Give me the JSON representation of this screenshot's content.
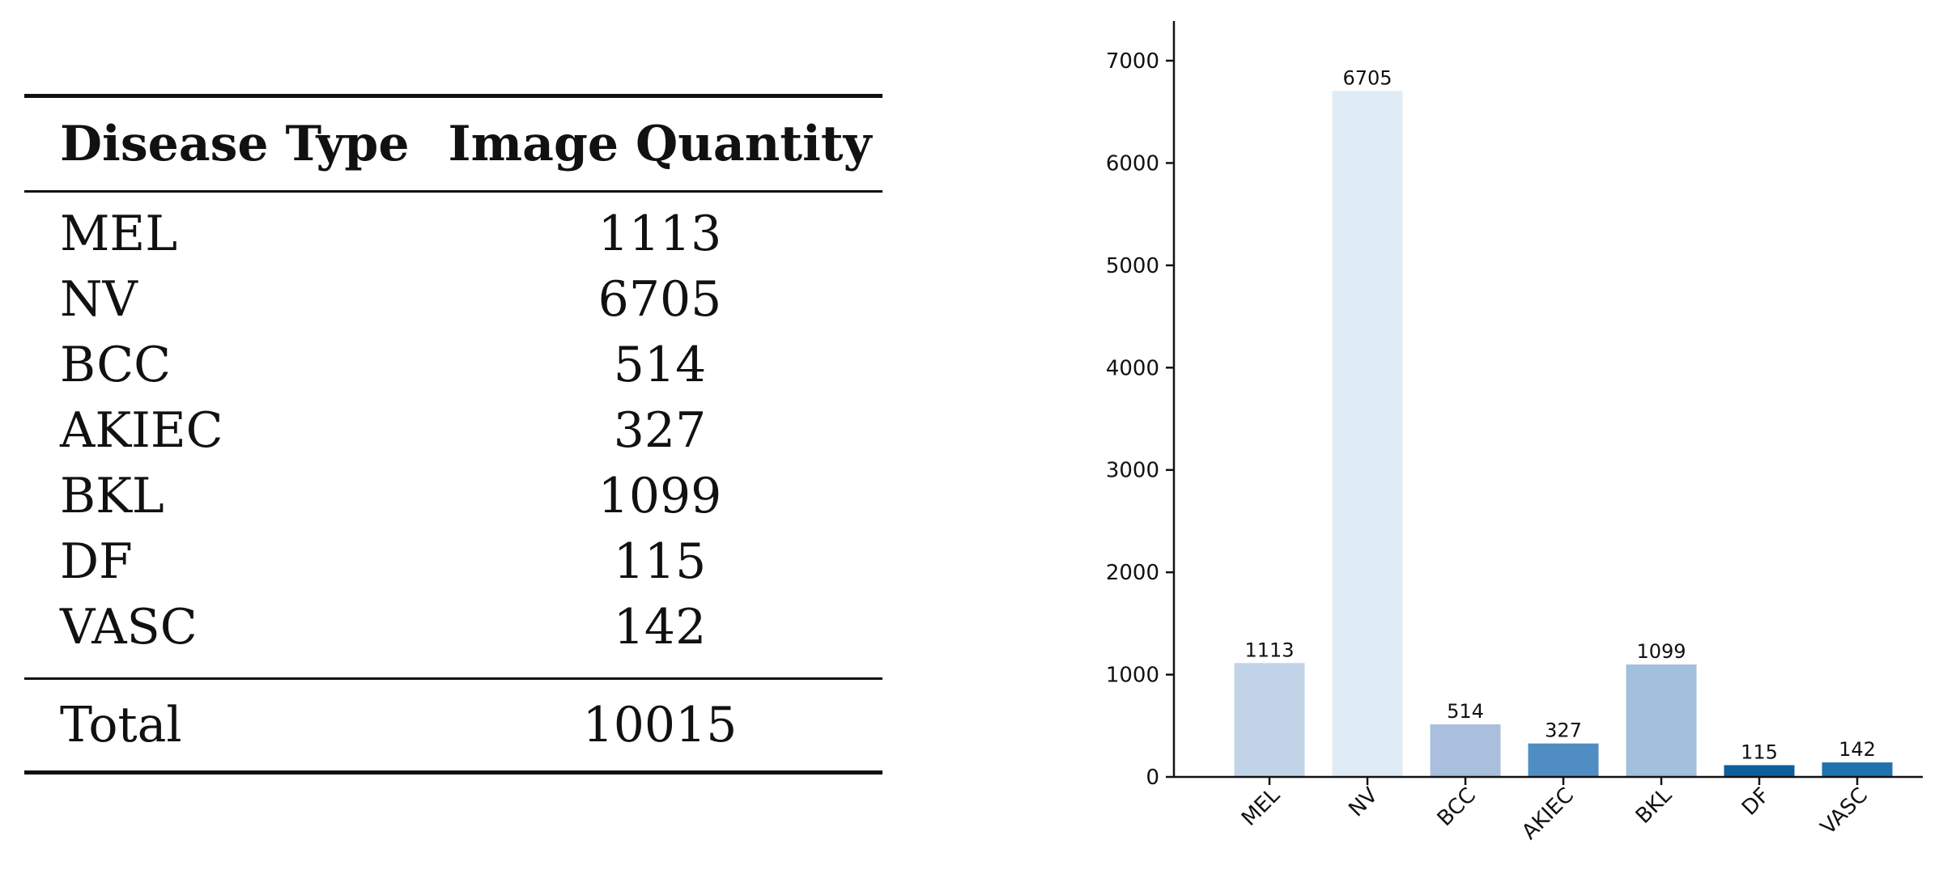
{
  "table": {
    "headers": [
      "Disease Type",
      "Image Quantity"
    ],
    "rows": [
      {
        "type": "MEL",
        "quantity": "1113"
      },
      {
        "type": "NV",
        "quantity": "6705"
      },
      {
        "type": "BCC",
        "quantity": "514"
      },
      {
        "type": "AKIEC",
        "quantity": "327"
      },
      {
        "type": "BKL",
        "quantity": "1099"
      },
      {
        "type": "DF",
        "quantity": "115"
      },
      {
        "type": "VASC",
        "quantity": "142"
      }
    ],
    "total_label": "Total",
    "total_value": "10015"
  },
  "chart_data": {
    "type": "bar",
    "title": "",
    "xlabel": "",
    "ylabel": "",
    "categories": [
      "MEL",
      "NV",
      "BCC",
      "AKIEC",
      "BKL",
      "DF",
      "VASC"
    ],
    "values": [
      1113,
      6705,
      514,
      327,
      1099,
      115,
      142
    ],
    "data_labels": [
      "1113",
      "6705",
      "514",
      "327",
      "1099",
      "115",
      "142"
    ],
    "colors": [
      "#c1d4e7",
      "#dfecf6",
      "#a9bfdd",
      "#4f8dc2",
      "#a2bfdc",
      "#0d5e9b",
      "#1f72ad"
    ],
    "yticks": [
      0,
      1000,
      2000,
      3000,
      4000,
      5000,
      6000,
      7000
    ],
    "ylim": [
      0,
      7400
    ],
    "grid": false,
    "legend": "none"
  }
}
